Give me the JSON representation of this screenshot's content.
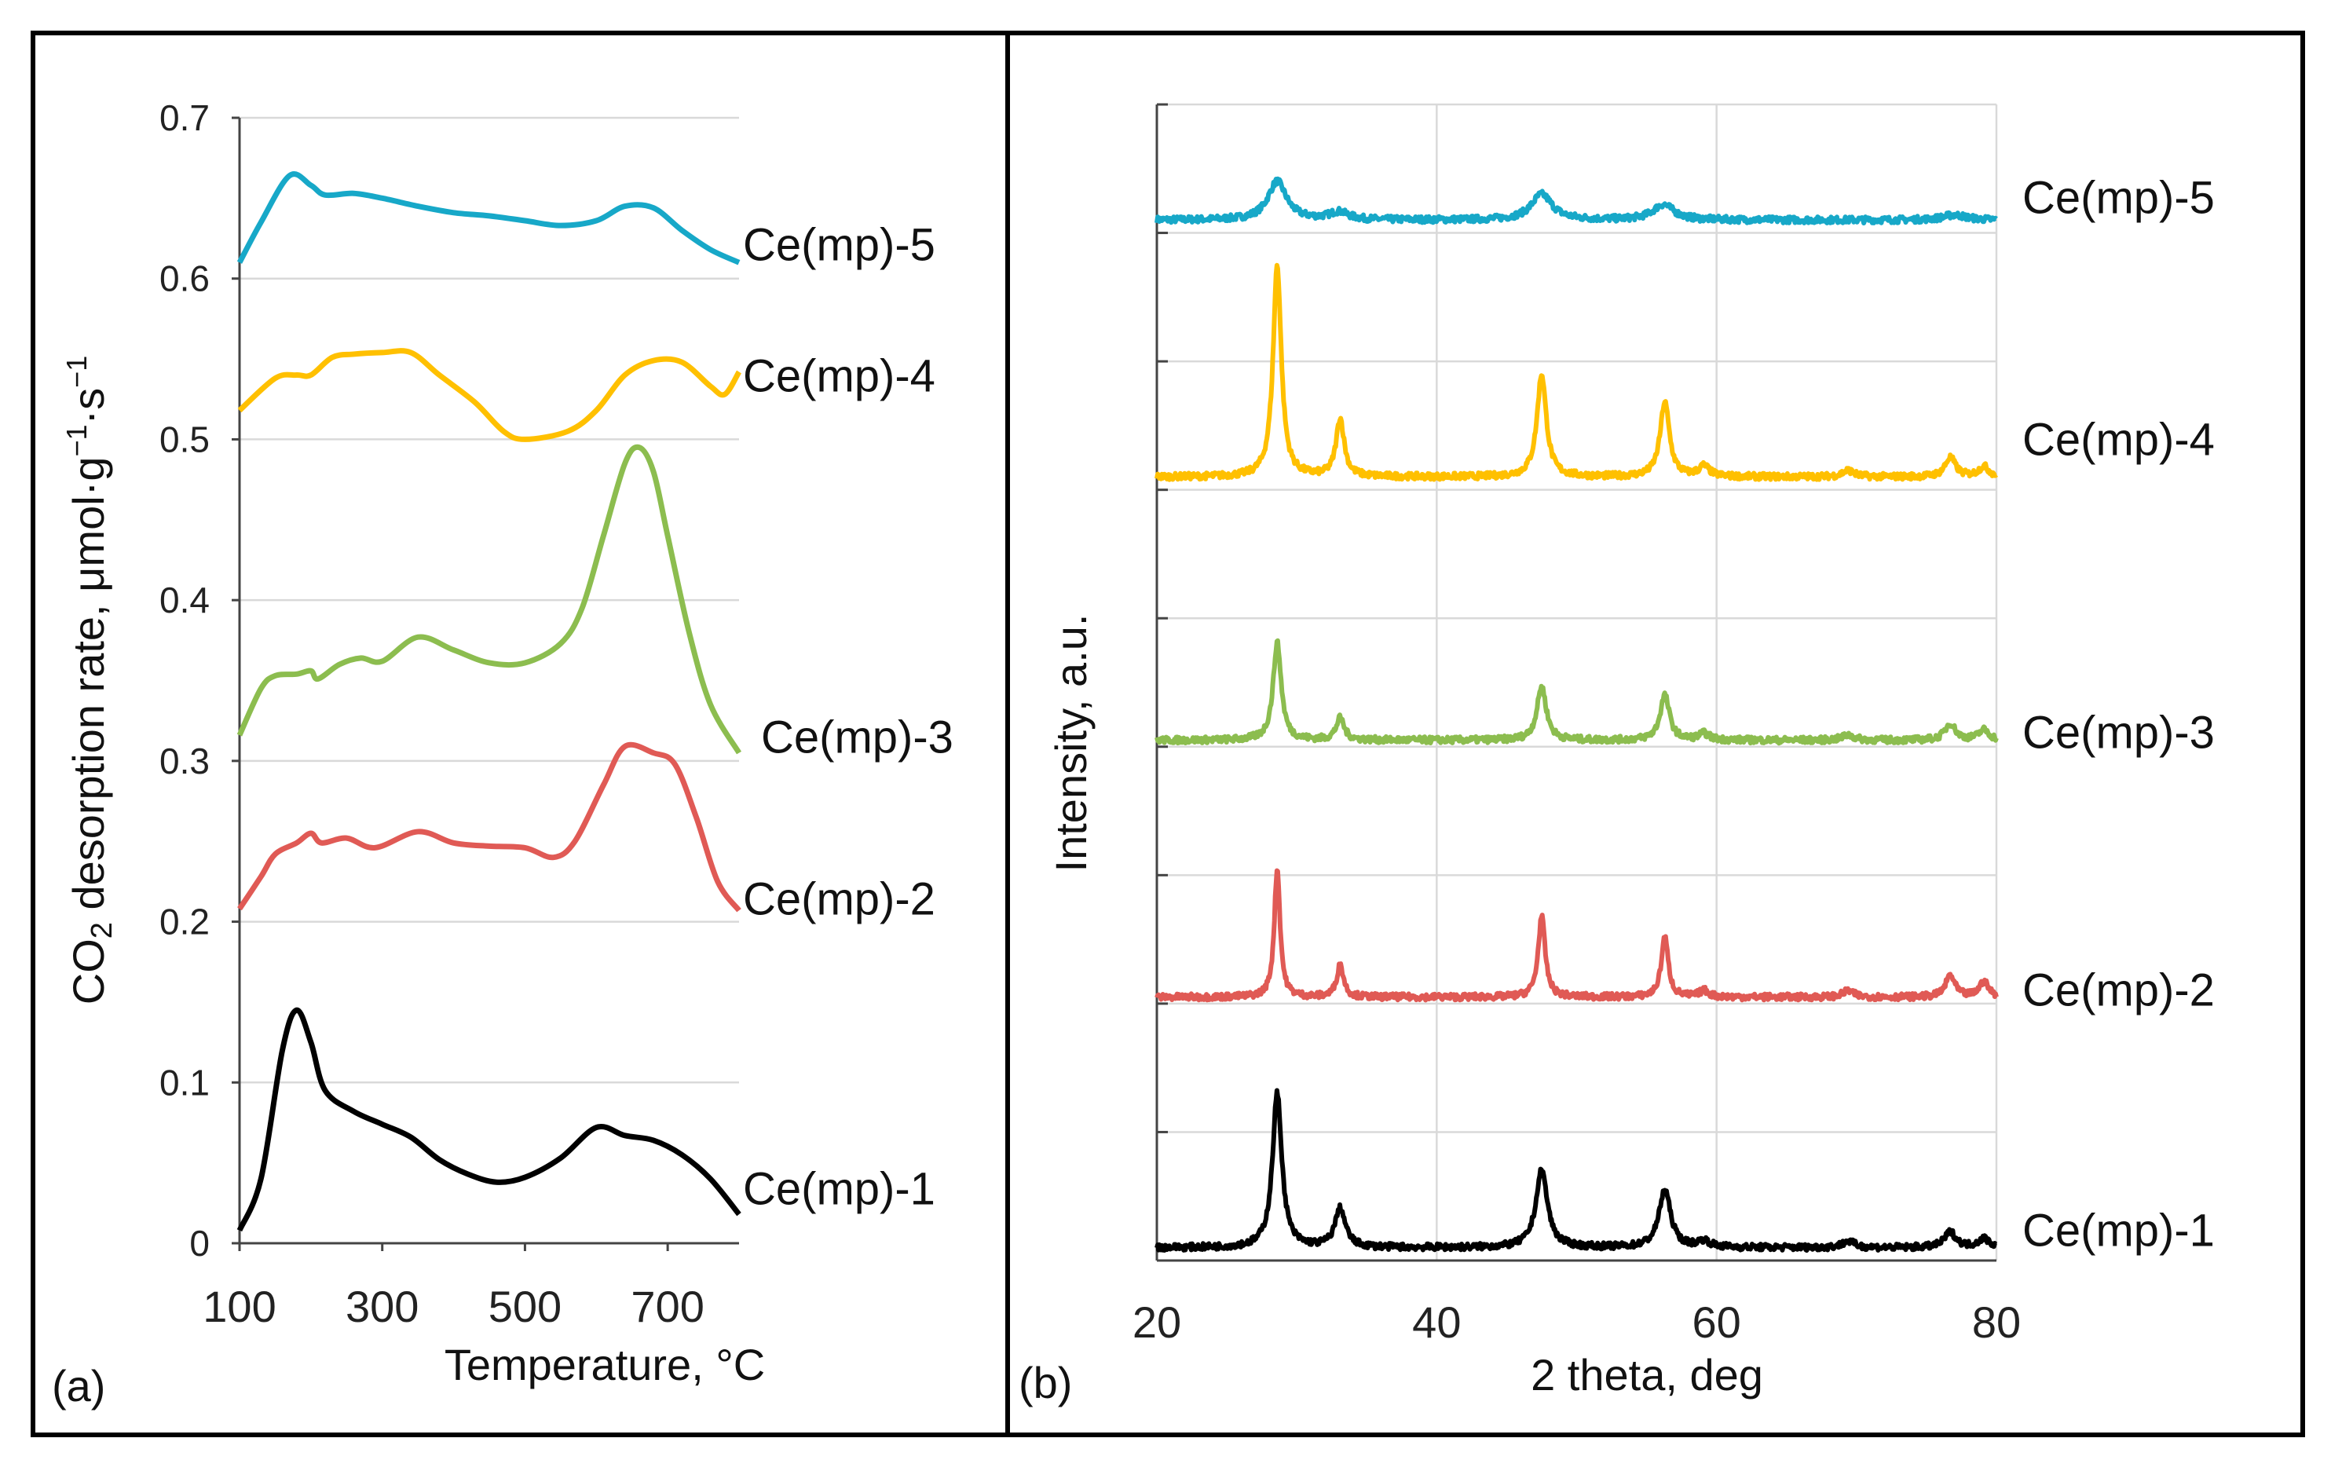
{
  "chart_data": [
    {
      "panel_label": "(a)",
      "type": "line",
      "xlabel": "Temperature, °C",
      "ylabel": {
        "prefix": "CO",
        "sub": "2",
        "mid": " desorption rate, μmol·g",
        "sup1": "−1",
        "mid2": "·s",
        "sup2": "−1"
      },
      "xlim": [
        100,
        800
      ],
      "ylim": [
        0,
        0.7
      ],
      "xticks": [
        "100",
        "300",
        "500",
        "700"
      ],
      "xtick_values": [
        100,
        300,
        500,
        700
      ],
      "yticks": [
        "0",
        "0.1",
        "0.2",
        "0.3",
        "0.4",
        "0.5",
        "0.6",
        "0.7"
      ],
      "grid": "horizontal",
      "legend": "inline labels at right end of curves",
      "series": [
        {
          "name": "Ce(mp)-5",
          "color": "#17a8c8",
          "x": [
            100,
            130,
            170,
            200,
            220,
            260,
            300,
            350,
            400,
            450,
            500,
            550,
            600,
            640,
            680,
            720,
            760,
            800
          ],
          "y": [
            0.61,
            0.635,
            0.664,
            0.658,
            0.652,
            0.653,
            0.65,
            0.645,
            0.641,
            0.639,
            0.636,
            0.633,
            0.636,
            0.645,
            0.644,
            0.63,
            0.618,
            0.61
          ]
        },
        {
          "name": "Ce(mp)-4",
          "color": "#ffc000",
          "x": [
            100,
            150,
            180,
            200,
            230,
            260,
            300,
            340,
            380,
            430,
            470,
            500,
            560,
            600,
            640,
            680,
            720,
            760,
            780,
            800
          ],
          "y": [
            0.518,
            0.538,
            0.54,
            0.54,
            0.551,
            0.553,
            0.554,
            0.554,
            0.54,
            0.523,
            0.505,
            0.5,
            0.505,
            0.518,
            0.54,
            0.549,
            0.548,
            0.533,
            0.528,
            0.542
          ]
        },
        {
          "name": "Ce(mp)-3",
          "color": "#8cbd4f",
          "x": [
            100,
            130,
            150,
            180,
            200,
            210,
            240,
            270,
            300,
            350,
            400,
            450,
            500,
            550,
            580,
            610,
            640,
            660,
            680,
            700,
            730,
            760,
            800
          ],
          "y": [
            0.316,
            0.345,
            0.353,
            0.354,
            0.356,
            0.351,
            0.36,
            0.364,
            0.362,
            0.377,
            0.369,
            0.361,
            0.361,
            0.373,
            0.395,
            0.44,
            0.485,
            0.495,
            0.48,
            0.44,
            0.38,
            0.335,
            0.305
          ]
        },
        {
          "name": "Ce(mp)-2",
          "color": "#e05a55",
          "x": [
            100,
            130,
            150,
            180,
            200,
            215,
            250,
            290,
            350,
            400,
            450,
            500,
            540,
            570,
            610,
            640,
            680,
            710,
            740,
            770,
            800
          ],
          "y": [
            0.208,
            0.228,
            0.242,
            0.249,
            0.255,
            0.249,
            0.252,
            0.246,
            0.256,
            0.249,
            0.247,
            0.246,
            0.24,
            0.25,
            0.285,
            0.309,
            0.305,
            0.298,
            0.265,
            0.225,
            0.207
          ]
        },
        {
          "name": "Ce(mp)-1",
          "color": "#000000",
          "x": [
            100,
            130,
            160,
            180,
            200,
            220,
            260,
            300,
            340,
            380,
            420,
            460,
            500,
            550,
            600,
            640,
            680,
            720,
            760,
            800
          ],
          "y": [
            0.008,
            0.04,
            0.12,
            0.145,
            0.125,
            0.095,
            0.082,
            0.074,
            0.066,
            0.052,
            0.043,
            0.038,
            0.041,
            0.053,
            0.072,
            0.067,
            0.064,
            0.055,
            0.04,
            0.018
          ]
        }
      ]
    },
    {
      "panel_label": "(b)",
      "type": "line",
      "xlabel": "2 theta, deg",
      "ylabel": "Intensity, a.u.",
      "xlim": [
        20,
        80
      ],
      "ylim": [
        0,
        9
      ],
      "xticks": [
        "20",
        "40",
        "60",
        "80"
      ],
      "xtick_values": [
        20,
        40,
        60,
        80
      ],
      "grid": "both",
      "legend": "inline labels at right of curves",
      "series": [
        {
          "name": "Ce(mp)-5",
          "color": "#17a8c8",
          "baseline": 8.1,
          "peaks": [
            [
              28.6,
              0.3,
              1.6
            ],
            [
              33.0,
              0.06,
              1.6
            ],
            [
              47.5,
              0.2,
              1.8
            ],
            [
              56.2,
              0.12,
              1.8
            ],
            [
              77.0,
              0.04,
              2.0
            ]
          ]
        },
        {
          "name": "Ce(mp)-4",
          "color": "#ffc000",
          "baseline": 6.1,
          "peaks": [
            [
              28.6,
              1.65,
              0.7
            ],
            [
              33.1,
              0.45,
              0.7
            ],
            [
              47.5,
              0.8,
              0.8
            ],
            [
              56.3,
              0.58,
              0.8
            ],
            [
              59.1,
              0.08,
              0.9
            ],
            [
              69.4,
              0.05,
              1.0
            ],
            [
              76.7,
              0.15,
              0.9
            ],
            [
              79.1,
              0.08,
              0.9
            ]
          ]
        },
        {
          "name": "Ce(mp)-3",
          "color": "#8cbd4f",
          "baseline": 4.05,
          "peaks": [
            [
              28.6,
              0.76,
              0.7
            ],
            [
              33.1,
              0.17,
              0.7
            ],
            [
              47.5,
              0.42,
              0.8
            ],
            [
              56.3,
              0.35,
              0.8
            ],
            [
              59.1,
              0.05,
              0.9
            ],
            [
              69.4,
              0.04,
              1.0
            ],
            [
              76.7,
              0.13,
              0.9
            ],
            [
              79.1,
              0.08,
              0.9
            ]
          ]
        },
        {
          "name": "Ce(mp)-2",
          "color": "#e05a55",
          "baseline": 2.05,
          "peaks": [
            [
              28.6,
              1.0,
              0.5
            ],
            [
              33.1,
              0.25,
              0.6
            ],
            [
              47.5,
              0.63,
              0.6
            ],
            [
              56.3,
              0.47,
              0.6
            ],
            [
              59.1,
              0.05,
              0.8
            ],
            [
              69.4,
              0.05,
              0.9
            ],
            [
              76.7,
              0.17,
              0.8
            ],
            [
              79.1,
              0.12,
              0.8
            ]
          ]
        },
        {
          "name": "Ce(mp)-1",
          "color": "#000000",
          "baseline": 0.1,
          "peaks": [
            [
              28.6,
              1.2,
              0.8
            ],
            [
              33.1,
              0.3,
              0.9
            ],
            [
              47.5,
              0.6,
              1.0
            ],
            [
              56.3,
              0.45,
              1.0
            ],
            [
              59.1,
              0.05,
              1.0
            ],
            [
              69.4,
              0.05,
              1.0
            ],
            [
              76.7,
              0.12,
              1.0
            ],
            [
              79.1,
              0.07,
              1.0
            ]
          ]
        }
      ]
    }
  ]
}
